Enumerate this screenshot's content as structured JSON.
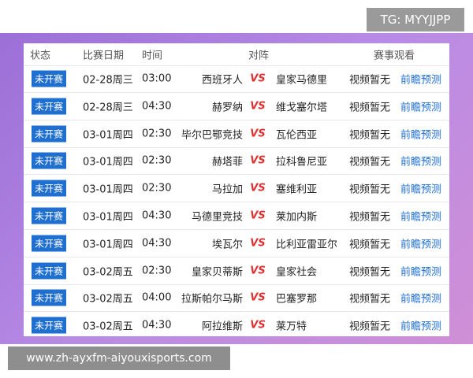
{
  "watermark": "TG: MYYJJPP",
  "footer_url": "www.zh-ayxfm-aiyouxisports.com",
  "table": {
    "headers": [
      "状态",
      "比赛日期",
      "时间",
      "对阵",
      "赛事观看"
    ],
    "rows": [
      [
        "未开赛",
        "02-28周三",
        "03:00",
        "西班牙人",
        "VS",
        "皇家马德里",
        "视频暂无",
        "前瞻预测"
      ],
      [
        "未开赛",
        "02-28周三",
        "04:30",
        "赫罗纳",
        "VS",
        "维戈塞尔塔",
        "视频暂无",
        "前瞻预测"
      ],
      [
        "未开赛",
        "03-01周四",
        "02:30",
        "毕尔巴鄂竞技",
        "VS",
        "瓦伦西亚",
        "视频暂无",
        "前瞻预测"
      ],
      [
        "未开赛",
        "03-01周四",
        "02:30",
        "赫塔菲",
        "VS",
        "拉科鲁尼亚",
        "视频暂无",
        "前瞻预测"
      ],
      [
        "未开赛",
        "03-01周四",
        "02:30",
        "马拉加",
        "VS",
        "塞维利亚",
        "视频暂无",
        "前瞻预测"
      ],
      [
        "未开赛",
        "03-01周四",
        "04:30",
        "马德里竞技",
        "VS",
        "莱加内斯",
        "视频暂无",
        "前瞻预测"
      ],
      [
        "未开赛",
        "03-01周四",
        "04:30",
        "埃瓦尔",
        "VS",
        "比利亚雷亚尔",
        "视频暂无",
        "前瞻预测"
      ],
      [
        "未开赛",
        "03-02周五",
        "02:30",
        "皇家贝蒂斯",
        "VS",
        "皇家社会",
        "视频暂无",
        "前瞻预测"
      ],
      [
        "未开赛",
        "03-02周五",
        "04:00",
        "拉斯帕尔马斯",
        "VS",
        "巴塞罗那",
        "视频暂无",
        "前瞻预测"
      ],
      [
        "未开赛",
        "03-02周五",
        "04:30",
        "阿拉维斯",
        "VS",
        "莱万特",
        "视频暂无",
        "前瞻预测"
      ]
    ]
  }
}
